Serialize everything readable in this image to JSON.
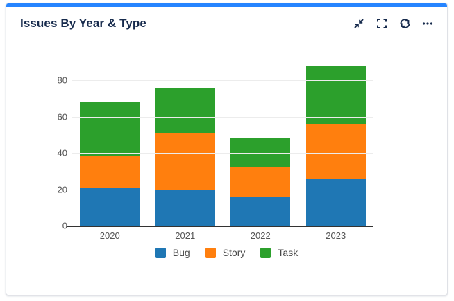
{
  "card": {
    "title": "Issues By Year & Type",
    "toolbar_icons": [
      "collapse-icon",
      "fullscreen-icon",
      "refresh-icon",
      "ellipsis-icon"
    ]
  },
  "colors": {
    "accent": "#2684FF",
    "ink": "#172B4D",
    "axis_line": "#333333",
    "gridline": "#ececec",
    "tick_label": "#565656",
    "legend_label": "#4a4a4a",
    "card_border": "#dfe1e6"
  },
  "chart_data": {
    "type": "bar",
    "stacked": true,
    "title": "Issues By Year & Type",
    "categories": [
      "2020",
      "2021",
      "2022",
      "2023"
    ],
    "series": [
      {
        "name": "Bug",
        "color": "#1f77b4",
        "values": [
          21,
          20,
          16,
          26
        ]
      },
      {
        "name": "Story",
        "color": "#ff7f0e",
        "values": [
          17,
          31,
          16,
          30
        ]
      },
      {
        "name": "Task",
        "color": "#2ca02c",
        "values": [
          30,
          25,
          16,
          32
        ]
      }
    ],
    "stack_totals": [
      68,
      76,
      48,
      88
    ],
    "y_ticks": [
      0,
      20,
      40,
      60,
      80
    ],
    "ylim": [
      0,
      89
    ],
    "xlabel": "",
    "ylabel": "",
    "grid": true,
    "legend_position": "bottom",
    "legend": [
      "Bug",
      "Story",
      "Task"
    ]
  }
}
